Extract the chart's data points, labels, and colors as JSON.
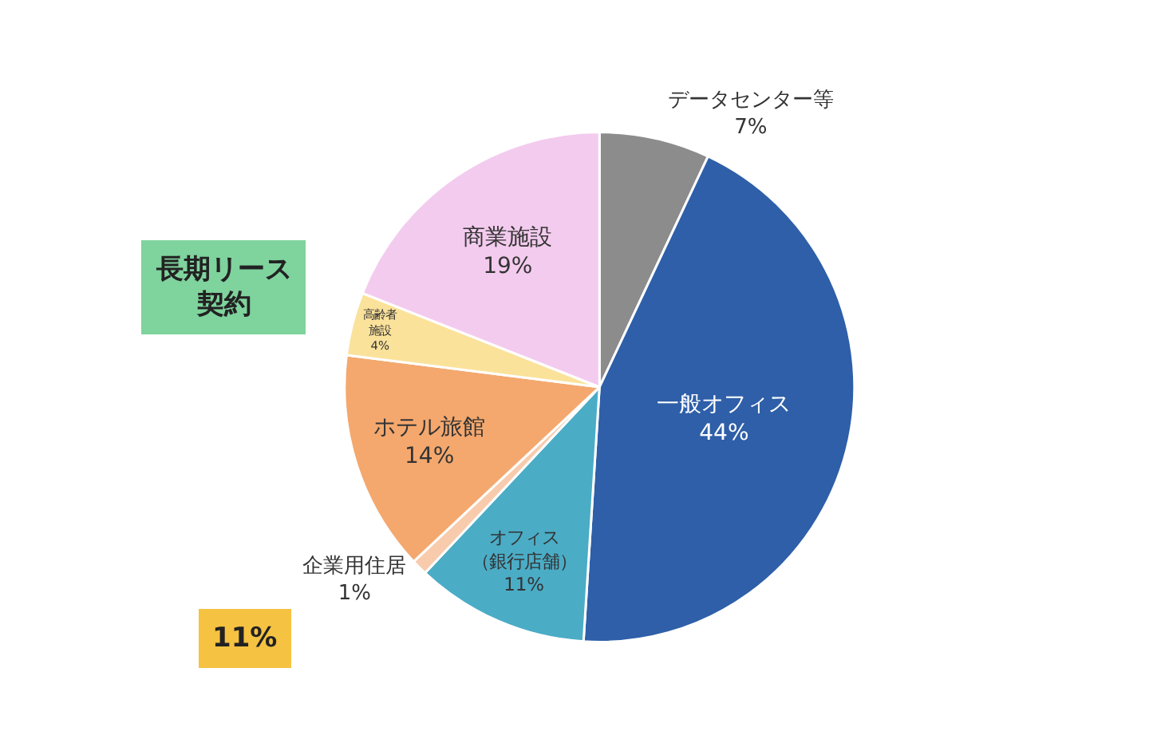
{
  "chart_data": {
    "type": "pie",
    "categories": [
      "データセンター等",
      "一般オフィス",
      "オフィス（銀行店舗）",
      "企業用住居",
      "ホテル旅館",
      "高齢者施設",
      "商業施設"
    ],
    "values": [
      7,
      44,
      11,
      1,
      14,
      4,
      19
    ],
    "value_labels": [
      "7%",
      "44%",
      "11%",
      "1%",
      "14%",
      "4%",
      "19%"
    ],
    "colors": [
      "#8c8c8c",
      "#2e5fa8",
      "#4bacc6",
      "#f8cbad",
      "#f4a86e",
      "#fbe29b",
      "#f3cbee"
    ],
    "legend": false,
    "annotations": [
      "長期リース契約",
      "11%"
    ]
  }
}
